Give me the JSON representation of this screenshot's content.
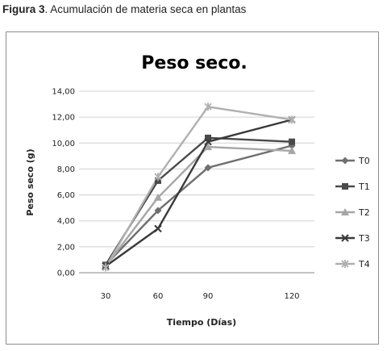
{
  "caption": {
    "prefix": "Figura 3",
    "text": ". Acumulación de materia seca en plantas"
  },
  "chart_data": {
    "type": "line",
    "title": "Peso seco.",
    "xlabel": "Tiempo (Días)",
    "ylabel": "Peso seco (g)",
    "x": [
      "30",
      "60",
      "90",
      "120"
    ],
    "ylim": [
      0,
      14
    ],
    "yticks": [
      "0,00",
      "2,00",
      "4,00",
      "6,00",
      "8,00",
      "10,00",
      "12,00",
      "14,00"
    ],
    "grid": "horizontal",
    "legend": "right",
    "series": [
      {
        "name": "T0",
        "values": [
          0.6,
          4.8,
          8.1,
          9.8
        ],
        "color": "#6f6f6f",
        "marker": "diamond"
      },
      {
        "name": "T1",
        "values": [
          0.6,
          7.1,
          10.4,
          10.1
        ],
        "color": "#4a4a4a",
        "marker": "square"
      },
      {
        "name": "T2",
        "values": [
          0.5,
          5.8,
          9.7,
          9.4
        ],
        "color": "#a6a6a6",
        "marker": "triangle"
      },
      {
        "name": "T3",
        "values": [
          0.5,
          3.4,
          10.1,
          11.8
        ],
        "color": "#3a3a3a",
        "marker": "x"
      },
      {
        "name": "T4",
        "values": [
          0.4,
          7.4,
          12.8,
          11.8
        ],
        "color": "#b0b0b0",
        "marker": "star"
      }
    ]
  }
}
